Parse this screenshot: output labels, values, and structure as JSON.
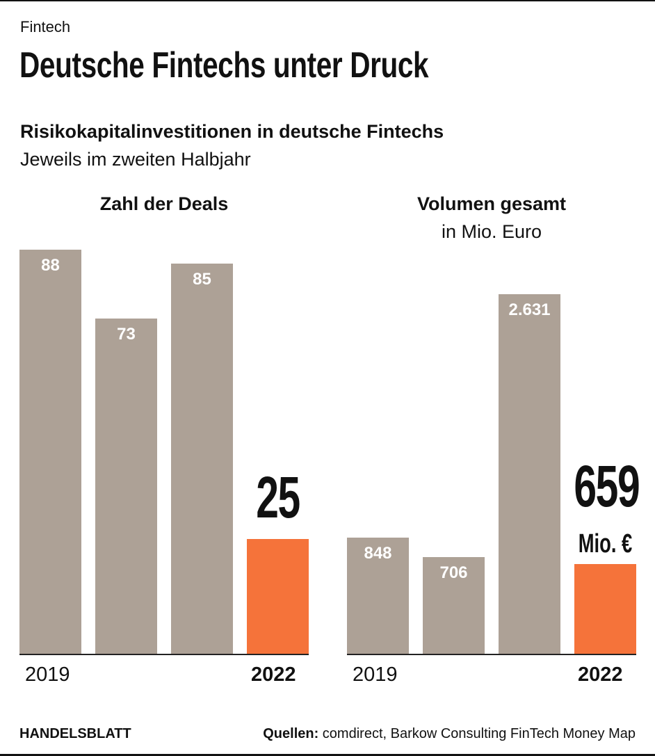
{
  "kicker": "Fintech",
  "title": "Deutsche Fintechs unter Druck",
  "subtitle": "Risikokapitalinvestitionen in deutsche Fintechs",
  "subtitle2": "Jeweils im zweiten Halbjahr",
  "colors": {
    "bar": "#ada196",
    "highlight": "#f5733a"
  },
  "chart_data": [
    {
      "type": "bar",
      "title": "Zahl der Deals",
      "subtitle": "",
      "x_start_label": "2019",
      "x_end_label": "2022",
      "values": [
        88,
        73,
        85,
        25
      ],
      "labels": [
        "88",
        "73",
        "85",
        "25"
      ],
      "highlight_index": 3,
      "highlight_unit": ""
    },
    {
      "type": "bar",
      "title": "Volumen gesamt",
      "subtitle": "in Mio. Euro",
      "x_start_label": "2019",
      "x_end_label": "2022",
      "values": [
        848,
        706,
        2631,
        659
      ],
      "labels": [
        "848",
        "706",
        "2.631",
        "659"
      ],
      "highlight_index": 3,
      "highlight_unit": "Mio. €"
    }
  ],
  "footer": {
    "brand": "HANDELSBLATT",
    "source_label": "Quellen:",
    "source": " comdirect, Barkow Consulting FinTech Money Map"
  }
}
